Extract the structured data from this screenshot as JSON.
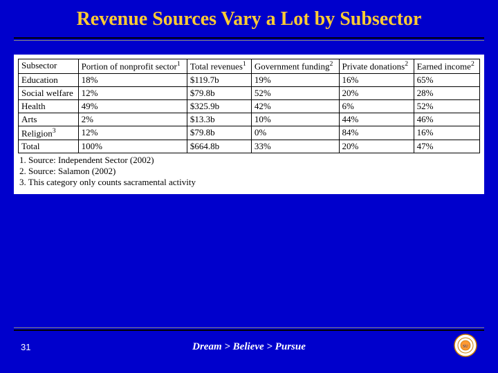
{
  "title": "Revenue Sources Vary a Lot by Subsector",
  "table": {
    "columns": [
      {
        "label": "Subsector",
        "sup": ""
      },
      {
        "label": "Portion of nonprofit sector",
        "sup": "1"
      },
      {
        "label": "Total revenues",
        "sup": "1"
      },
      {
        "label": "Government funding",
        "sup": "2"
      },
      {
        "label": "Private donations",
        "sup": "2"
      },
      {
        "label": "Earned income",
        "sup": "2"
      }
    ],
    "rows": [
      {
        "c0": "Education",
        "c1": "18%",
        "c2": "$119.7b",
        "c3": "19%",
        "c4": "16%",
        "c5": "65%"
      },
      {
        "c0": "Social welfare",
        "c1": "12%",
        "c2": "$79.8b",
        "c3": "52%",
        "c4": "20%",
        "c5": "28%"
      },
      {
        "c0": "Health",
        "c1": "49%",
        "c2": "$325.9b",
        "c3": "42%",
        "c4": "6%",
        "c5": "52%"
      },
      {
        "c0": "Arts",
        "c1": "2%",
        "c2": "$13.3b",
        "c3": "10%",
        "c4": "44%",
        "c5": "46%"
      }
    ],
    "religion_row": {
      "c0": "Religion",
      "sup": "3",
      "c1": "12%",
      "c2": "$79.8b",
      "c3": "0%",
      "c4": "84%",
      "c5": "16%"
    },
    "total_row": {
      "c0": "Total",
      "c1": "100%",
      "c2": "$664.8b",
      "c3": "33%",
      "c4": "20%",
      "c5": "47%"
    }
  },
  "footnotes": {
    "f1": "1. Source: Independent Sector (2002)",
    "f2": "2. Source: Salamon (2002)",
    "f3": "3. This category only counts sacramental activity"
  },
  "page_number": "31",
  "tagline": "Dream > Believe > Pursue",
  "colors": {
    "background": "#0000cc",
    "title_color": "#ffcc33",
    "panel_bg": "#ffffff",
    "text_color": "#000000",
    "footer_text": "#ffffff"
  }
}
